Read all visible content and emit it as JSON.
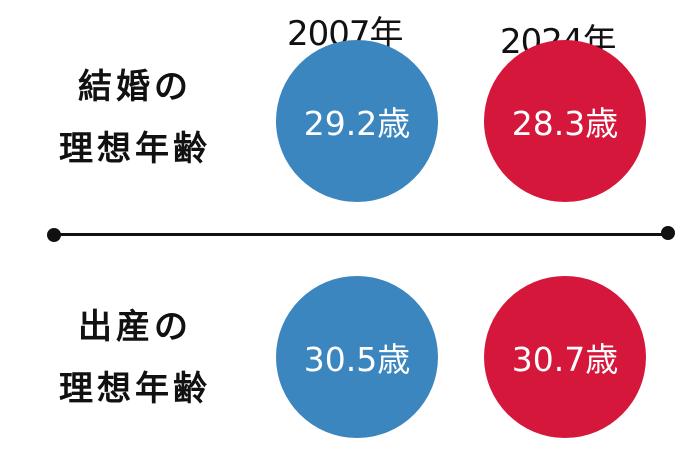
{
  "chart_data": {
    "type": "table",
    "categories": [
      "2007年",
      "2024年"
    ],
    "rows": [
      {
        "label_lines": [
          "結婚の",
          "理想年齢"
        ],
        "values": [
          "29.2歳",
          "28.3歳"
        ]
      },
      {
        "label_lines": [
          "出産の",
          "理想年齢"
        ],
        "values": [
          "30.5歳",
          "30.7歳"
        ]
      }
    ],
    "colors": {
      "2007年": "#3b86bf",
      "2024年": "#d4173a"
    }
  }
}
